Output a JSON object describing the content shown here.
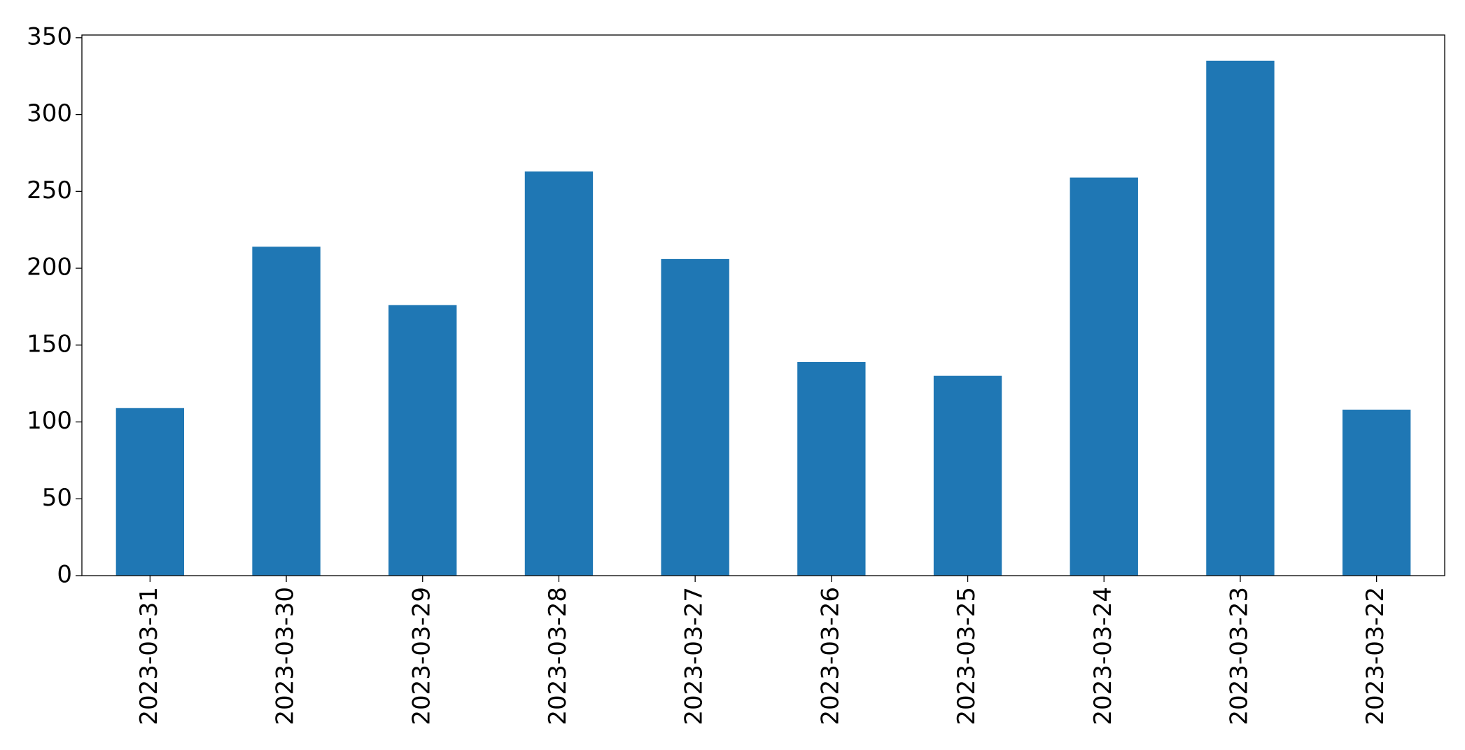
{
  "chart_data": {
    "type": "bar",
    "categories": [
      "2023-03-31",
      "2023-03-30",
      "2023-03-29",
      "2023-03-28",
      "2023-03-27",
      "2023-03-26",
      "2023-03-25",
      "2023-03-24",
      "2023-03-23",
      "2023-03-22"
    ],
    "values": [
      109,
      214,
      176,
      263,
      206,
      139,
      130,
      259,
      335,
      108
    ],
    "color": "#1f77b4",
    "ylim": [
      0,
      351.75
    ],
    "yticks": [
      0,
      50,
      100,
      150,
      200,
      250,
      300,
      350
    ],
    "grid": false
  }
}
